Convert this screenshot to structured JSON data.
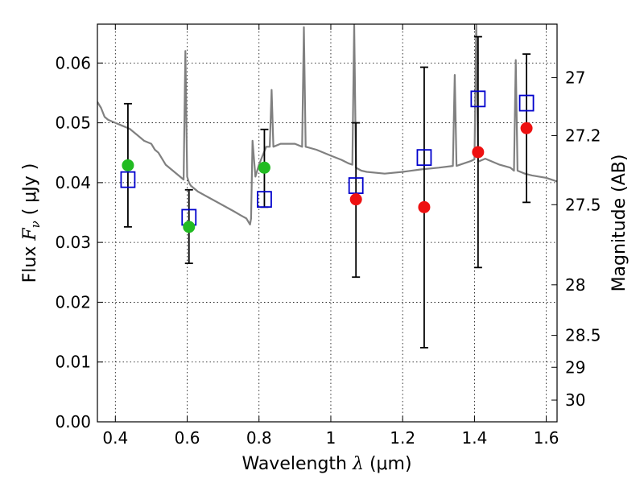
{
  "chart_data": {
    "type": "scatter",
    "xlabel": {
      "text": "Wavelength",
      "symbol": "λ",
      "unit": "(μm)"
    },
    "ylabel": {
      "text": "Flux",
      "symbol": "F",
      "subscript": "ν",
      "unit": "( μJy )"
    },
    "y2label": "Magnitude (AB)",
    "xlim": [
      0.35,
      1.63
    ],
    "ylim": [
      0.0,
      0.0665
    ],
    "grid": true,
    "x_ticks": [
      0.4,
      0.6,
      0.8,
      1.0,
      1.2,
      1.4,
      1.6
    ],
    "x_tick_labels": [
      "0.4",
      "0.6",
      "0.8",
      "1",
      "1.2",
      "1.4",
      "1.6"
    ],
    "y_ticks": [
      0.0,
      0.01,
      0.02,
      0.03,
      0.04,
      0.05,
      0.06
    ],
    "y_tick_labels": [
      "0.00",
      "0.01",
      "0.02",
      "0.03",
      "0.04",
      "0.05",
      "0.06"
    ],
    "y2_ticks": [
      {
        "label": "27",
        "mag": 27.0
      },
      {
        "label": "27.2",
        "mag": 27.2
      },
      {
        "label": "27.5",
        "mag": 27.5
      },
      {
        "label": "28",
        "mag": 28.0
      },
      {
        "label": "28.5",
        "mag": 28.5
      },
      {
        "label": "29",
        "mag": 29.0
      },
      {
        "label": "30",
        "mag": 30.0
      }
    ],
    "series": [
      {
        "kind": "line",
        "color": "#808080",
        "x": [
          0.35,
          0.36,
          0.37,
          0.38,
          0.4,
          0.42,
          0.44,
          0.46,
          0.48,
          0.5,
          0.51,
          0.52,
          0.54,
          0.56,
          0.58,
          0.59,
          0.595,
          0.6,
          0.605,
          0.61,
          0.63,
          0.66,
          0.7,
          0.73,
          0.75,
          0.765,
          0.775,
          0.778,
          0.782,
          0.79,
          0.8,
          0.81,
          0.82,
          0.83,
          0.835,
          0.84,
          0.86,
          0.9,
          0.92,
          0.925,
          0.93,
          0.96,
          1.0,
          1.03,
          1.05,
          1.06,
          1.065,
          1.07,
          1.085,
          1.1,
          1.15,
          1.2,
          1.25,
          1.3,
          1.34,
          1.345,
          1.35,
          1.37,
          1.39,
          1.4,
          1.405,
          1.41,
          1.43,
          1.45,
          1.47,
          1.5,
          1.51,
          1.515,
          1.52,
          1.54,
          1.56,
          1.6,
          1.63
        ],
        "y": [
          0.0535,
          0.0525,
          0.051,
          0.0505,
          0.05,
          0.0495,
          0.049,
          0.048,
          0.047,
          0.0465,
          0.0455,
          0.045,
          0.043,
          0.042,
          0.041,
          0.0405,
          0.062,
          0.041,
          0.04,
          0.0395,
          0.0385,
          0.0375,
          0.0362,
          0.0352,
          0.0345,
          0.034,
          0.033,
          0.034,
          0.047,
          0.041,
          0.043,
          0.0445,
          0.046,
          0.046,
          0.0555,
          0.046,
          0.0465,
          0.0465,
          0.046,
          0.066,
          0.046,
          0.0455,
          0.0445,
          0.0438,
          0.0432,
          0.043,
          0.0665,
          0.0425,
          0.042,
          0.0418,
          0.0415,
          0.0418,
          0.0422,
          0.0425,
          0.0428,
          0.058,
          0.0428,
          0.0432,
          0.0436,
          0.0439,
          0.0665,
          0.0435,
          0.044,
          0.0435,
          0.043,
          0.0425,
          0.042,
          0.0605,
          0.042,
          0.0415,
          0.0412,
          0.0408,
          0.0402
        ]
      },
      {
        "kind": "errorbar",
        "color": "#000000",
        "x": [
          0.435,
          0.605,
          0.815,
          1.07,
          1.26,
          1.41,
          1.545
        ],
        "y_low": [
          0.0326,
          0.0265,
          0.0359,
          0.0242,
          0.0124,
          0.0258,
          0.0367
        ],
        "y_high": [
          0.0532,
          0.0388,
          0.0489,
          0.05,
          0.0593,
          0.0644,
          0.0615
        ]
      },
      {
        "kind": "marker",
        "marker": "open-square",
        "color": "#0000cc",
        "x": [
          0.435,
          0.605,
          0.815,
          1.07,
          1.26,
          1.41,
          1.545
        ],
        "y": [
          0.0405,
          0.0342,
          0.0372,
          0.0395,
          0.0442,
          0.054,
          0.0533
        ]
      },
      {
        "kind": "marker",
        "marker": "filled-circle",
        "color": "#22bb22",
        "x": [
          0.435,
          0.605,
          0.815
        ],
        "y": [
          0.0429,
          0.0326,
          0.0425
        ]
      },
      {
        "kind": "marker",
        "marker": "filled-circle",
        "color": "#ee1111",
        "x": [
          1.07,
          1.26,
          1.41,
          1.545
        ],
        "y": [
          0.0372,
          0.0359,
          0.0451,
          0.0491
        ]
      }
    ]
  }
}
